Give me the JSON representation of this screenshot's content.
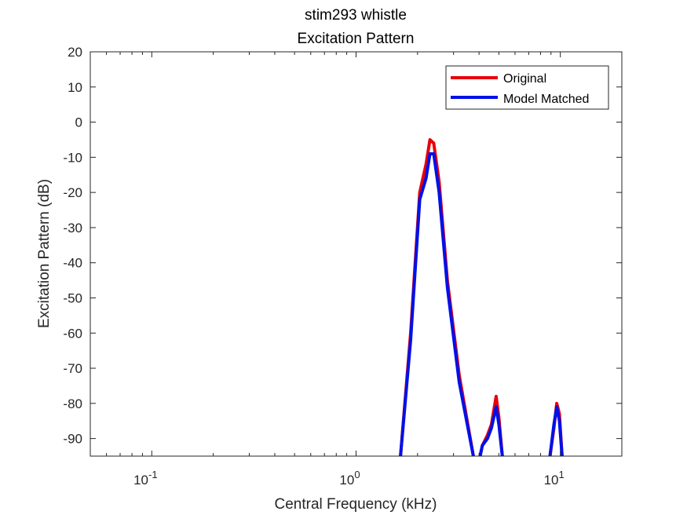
{
  "chart_data": {
    "type": "line",
    "title": "stim293 whistle",
    "subtitle": "Excitation Pattern",
    "xlabel": "Central Frequency (kHz)",
    "ylabel": "Excitation Pattern (dB)",
    "xscale": "log",
    "xlim": [
      0.05,
      20
    ],
    "ylim": [
      -95,
      20
    ],
    "yticks": [
      20,
      10,
      0,
      -10,
      -20,
      -30,
      -40,
      -50,
      -60,
      -70,
      -80,
      -90
    ],
    "xticks": [
      {
        "value": 0.1,
        "base": "10",
        "exp": "-1"
      },
      {
        "value": 1,
        "base": "10",
        "exp": "0"
      },
      {
        "value": 10,
        "base": "10",
        "exp": "1"
      }
    ],
    "grid": false,
    "legend_position": "top-right",
    "series": [
      {
        "name": "Original",
        "color": "#e8000b",
        "segments": [
          [
            [
              1.65,
              -95
            ],
            [
              1.85,
              -60
            ],
            [
              2.05,
              -20
            ],
            [
              2.2,
              -12
            ],
            [
              2.3,
              -5
            ],
            [
              2.4,
              -6
            ],
            [
              2.55,
              -17
            ],
            [
              2.8,
              -45
            ],
            [
              3.2,
              -72
            ],
            [
              3.75,
              -95
            ]
          ],
          [
            [
              4.05,
              -95
            ],
            [
              4.15,
              -92
            ],
            [
              4.4,
              -89
            ],
            [
              4.6,
              -86
            ],
            [
              4.85,
              -78
            ],
            [
              5.0,
              -84
            ],
            [
              5.2,
              -95
            ]
          ],
          [
            [
              8.9,
              -95
            ],
            [
              9.3,
              -87
            ],
            [
              9.6,
              -80
            ],
            [
              9.9,
              -83
            ],
            [
              10.2,
              -95
            ]
          ]
        ]
      },
      {
        "name": "Model Matched",
        "color": "#0010e8",
        "segments": [
          [
            [
              1.65,
              -95
            ],
            [
              1.85,
              -62
            ],
            [
              2.05,
              -22
            ],
            [
              2.2,
              -16
            ],
            [
              2.3,
              -9
            ],
            [
              2.4,
              -9
            ],
            [
              2.55,
              -20
            ],
            [
              2.8,
              -47
            ],
            [
              3.2,
              -74
            ],
            [
              3.75,
              -95
            ]
          ],
          [
            [
              4.05,
              -95
            ],
            [
              4.15,
              -92
            ],
            [
              4.4,
              -90
            ],
            [
              4.6,
              -87
            ],
            [
              4.85,
              -81
            ],
            [
              5.0,
              -86
            ],
            [
              5.2,
              -95
            ]
          ],
          [
            [
              8.9,
              -95
            ],
            [
              9.3,
              -86
            ],
            [
              9.6,
              -81
            ],
            [
              9.9,
              -85
            ],
            [
              10.2,
              -95
            ]
          ]
        ]
      }
    ]
  }
}
